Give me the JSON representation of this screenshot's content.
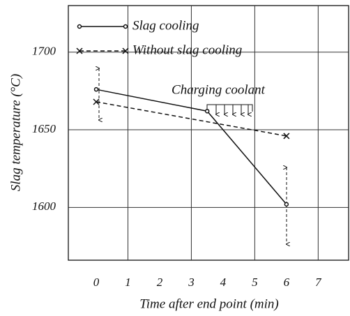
{
  "chart_data": {
    "type": "line",
    "x_label": "Time after end point (min)",
    "y_label": "Slag temperature (°C)",
    "annotation": "Charging coolant",
    "xlim": [
      -0.88,
      7.96
    ],
    "xticks": [
      0,
      1,
      2,
      3,
      4,
      5,
      6,
      7
    ],
    "ylim": [
      1566,
      1730
    ],
    "yticks": [
      1600,
      1650,
      1700
    ],
    "grid": true,
    "legend": "upper left",
    "series": [
      {
        "name": "Slag cooling",
        "color": "#111111",
        "style": "solid",
        "marker": "o",
        "x": [
          0,
          3.5,
          6
        ],
        "values": [
          1676,
          1662,
          1602
        ]
      },
      {
        "name": "Without slag cooling",
        "color": "#111111",
        "style": "dashed",
        "marker": "x",
        "x": [
          0,
          6
        ],
        "values": [
          1668,
          1646
        ]
      }
    ]
  }
}
